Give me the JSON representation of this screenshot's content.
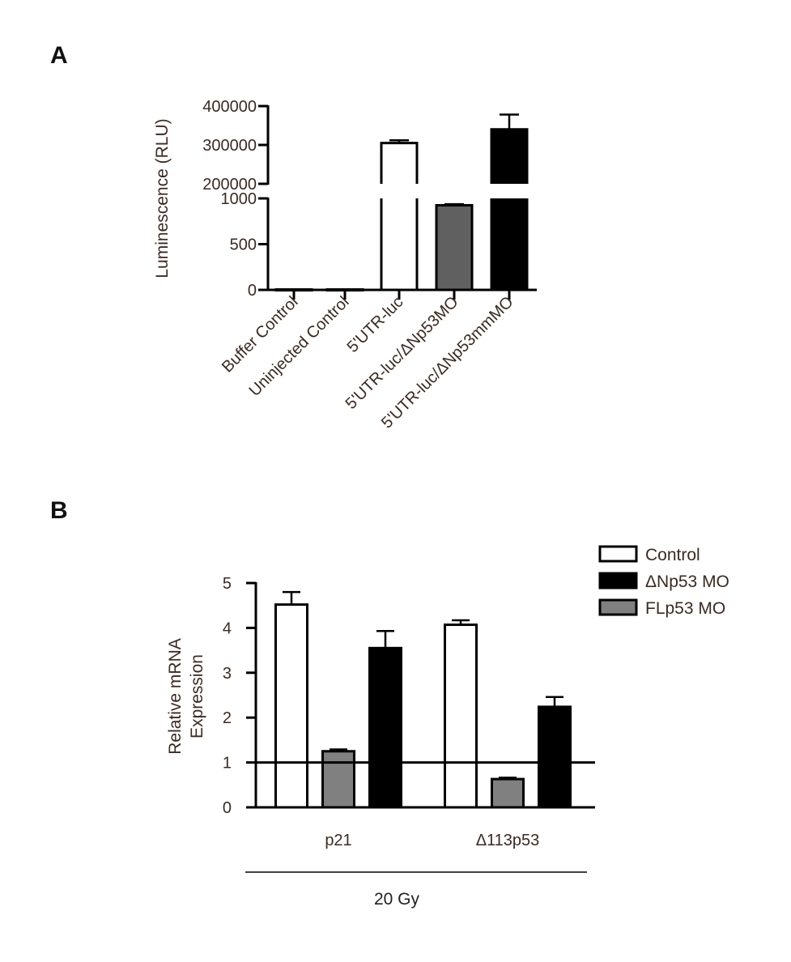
{
  "chart_data": [
    {
      "panel": "A",
      "type": "bar",
      "ylabel": "Luminescence (RLU)",
      "broken_axis": true,
      "y_segments": [
        {
          "ylim": [
            0,
            1000
          ],
          "ticks": [
            "0",
            "500",
            "1000"
          ]
        },
        {
          "ylim": [
            200000,
            400000
          ],
          "ticks": [
            "200000",
            "300000",
            "400000"
          ]
        }
      ],
      "categories": [
        "Buffer Control",
        "Uninjected Control",
        "5'UTR-luc",
        "5'UTR-luc/ΔNp53MO",
        "5'UTR-luc/ΔNp53mmMO"
      ],
      "values": [
        5,
        5,
        305000,
        925,
        340000
      ],
      "errors": [
        0,
        0,
        7000,
        12,
        38000
      ],
      "colors": [
        "#ffffff",
        "#ffffff",
        "#ffffff",
        "#606060",
        "#000000"
      ]
    },
    {
      "panel": "B",
      "type": "bar",
      "ylabel": "Relative mRNA Expression",
      "ylim": [
        0,
        5
      ],
      "ticks": [
        "0",
        "1",
        "2",
        "3",
        "4",
        "5"
      ],
      "reference_line": 1,
      "categories": [
        "p21",
        "Δ113p53"
      ],
      "group_label": "20 Gy",
      "series": [
        {
          "name": "Control",
          "color": "#ffffff",
          "values": [
            4.52,
            4.07
          ],
          "errors": [
            0.28,
            0.1
          ]
        },
        {
          "name": "ΔNp53 MO",
          "color": "#000000",
          "values": [
            3.55,
            2.24
          ],
          "errors": [
            0.38,
            0.22
          ]
        },
        {
          "name": "FLp53 MO",
          "color": "#808080",
          "values": [
            1.25,
            0.63
          ],
          "errors": [
            0.04,
            0.03
          ]
        }
      ],
      "bar_order": [
        "Control",
        "FLp53 MO",
        "ΔNp53 MO"
      ],
      "legend_position": "top-right"
    }
  ]
}
